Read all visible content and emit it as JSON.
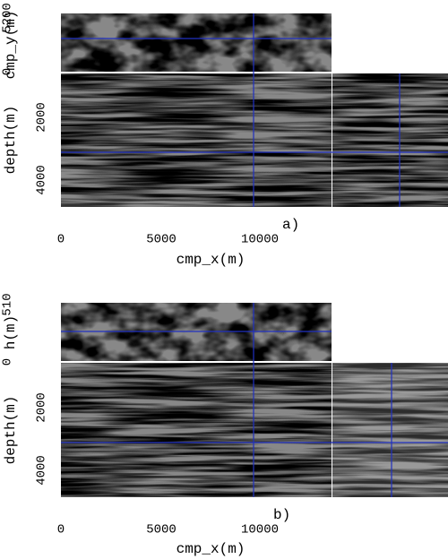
{
  "panels": [
    {
      "label": "a)",
      "top_axis": {
        "label": "cmp_y(m)",
        "ticks": [
          "5200",
          "0"
        ]
      },
      "depth_axis": {
        "label": "depth(m)",
        "ticks": [
          "2000",
          "4000"
        ]
      },
      "x_axis": {
        "label": "cmp_x(m)",
        "ticks": [
          "0",
          "5000",
          "10000"
        ]
      }
    },
    {
      "label": "b)",
      "top_axis": {
        "label": "h(m)",
        "ticks": [
          "510",
          "0"
        ]
      },
      "depth_axis": {
        "label": "depth(m)",
        "ticks": [
          "2000",
          "4000"
        ]
      },
      "x_axis": {
        "label": "cmp_x(m)",
        "ticks": [
          "0",
          "5000",
          "10000"
        ]
      }
    }
  ]
}
